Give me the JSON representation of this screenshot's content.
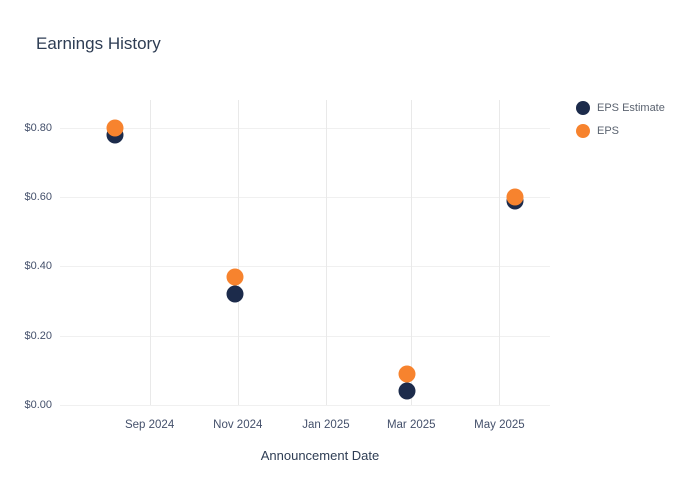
{
  "chart_data": {
    "type": "scatter",
    "title": "Earnings History",
    "xlabel": "Announcement Date",
    "ylabel": "",
    "grid": true,
    "legend_position": "top-right",
    "xlim": [
      "2024-07-01",
      "2025-06-05"
    ],
    "ylim": [
      0,
      0.88
    ],
    "x_ticks": [
      {
        "date": "2024-09-01",
        "label": "Sep 2024"
      },
      {
        "date": "2024-11-01",
        "label": "Nov 2024"
      },
      {
        "date": "2025-01-01",
        "label": "Jan 2025"
      },
      {
        "date": "2025-03-01",
        "label": "Mar 2025"
      },
      {
        "date": "2025-05-01",
        "label": "May 2025"
      }
    ],
    "y_ticks": [
      {
        "value": 0.0,
        "label": "$0.00"
      },
      {
        "value": 0.2,
        "label": "$0.20"
      },
      {
        "value": 0.4,
        "label": "$0.40"
      },
      {
        "value": 0.6,
        "label": "$0.60"
      },
      {
        "value": 0.8,
        "label": "$0.80"
      }
    ],
    "series": [
      {
        "name": "EPS Estimate",
        "color": "#1c2b4b",
        "points": [
          {
            "x": "2024-08-08",
            "y": 0.78
          },
          {
            "x": "2024-10-30",
            "y": 0.32
          },
          {
            "x": "2025-02-26",
            "y": 0.04
          },
          {
            "x": "2025-05-12",
            "y": 0.59
          }
        ]
      },
      {
        "name": "EPS",
        "color": "#f7832e",
        "points": [
          {
            "x": "2024-08-08",
            "y": 0.8
          },
          {
            "x": "2024-10-30",
            "y": 0.37
          },
          {
            "x": "2025-02-26",
            "y": 0.09
          },
          {
            "x": "2025-05-12",
            "y": 0.6
          }
        ]
      }
    ]
  }
}
